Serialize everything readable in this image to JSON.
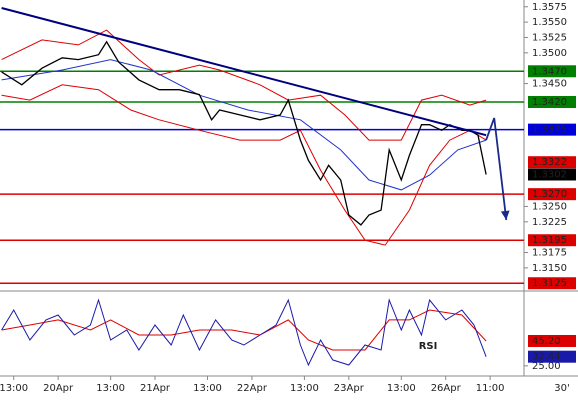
{
  "chart_data": [
    {
      "type": "line",
      "xlim": [
        -14.4,
        114.4
      ],
      "ylim": [
        1.3114,
        1.3586
      ],
      "grid": false,
      "yticks": [
        {
          "value": 1.3575,
          "label": "1.3575"
        },
        {
          "value": 1.355,
          "label": "1.3550"
        },
        {
          "value": 1.3525,
          "label": "1.3525"
        },
        {
          "value": 1.35,
          "label": "1.3500"
        },
        {
          "value": 1.345,
          "label": "1.3450"
        },
        {
          "value": 1.325,
          "label": "1.3250"
        },
        {
          "value": 1.3225,
          "label": "1.3225"
        },
        {
          "value": 1.3175,
          "label": "1.3175"
        },
        {
          "value": 1.315,
          "label": "1.3150"
        }
      ],
      "levels": [
        {
          "value": 1.347,
          "label": "1.3470",
          "color": "#008000"
        },
        {
          "value": 1.342,
          "label": "1.3420",
          "color": "#008000"
        },
        {
          "value": 1.3375,
          "label": "1.3375",
          "color": "#0000dd"
        },
        {
          "value": 1.327,
          "label": "1.3270",
          "color": "#dd0000"
        },
        {
          "value": 1.3195,
          "label": "1.3195",
          "color": "#dd0000"
        },
        {
          "value": 1.3125,
          "label": "1.3125",
          "color": "#dd0000"
        }
      ],
      "price_labels": [
        {
          "value": 1.3322,
          "label": "1.3322",
          "color": "#dd0000"
        },
        {
          "value": 1.3302,
          "label": "1.3302",
          "color": "#000000"
        }
      ],
      "series": [
        {
          "color": "#dd0000",
          "width": 1,
          "x": [
            -14,
            -4,
            5,
            12,
            20,
            25,
            35,
            40,
            50,
            57,
            65,
            71,
            77,
            85,
            90,
            95,
            102,
            106
          ],
          "values": [
            1.3489,
            1.3521,
            1.3513,
            1.3537,
            1.3489,
            1.3464,
            1.348,
            1.3472,
            1.3448,
            1.3423,
            1.3431,
            1.3399,
            1.3358,
            1.3358,
            1.3423,
            1.3431,
            1.3415,
            1.3423
          ]
        },
        {
          "color": "#dd0000",
          "width": 1,
          "x": [
            -14,
            -7,
            1,
            10,
            18,
            25,
            35,
            45,
            55,
            60,
            65,
            71,
            76,
            81,
            87,
            92,
            97,
            102,
            106
          ],
          "values": [
            1.3431,
            1.3423,
            1.3448,
            1.344,
            1.3407,
            1.3391,
            1.3374,
            1.3358,
            1.3358,
            1.3374,
            1.3309,
            1.3244,
            1.3195,
            1.3187,
            1.3244,
            1.3317,
            1.3358,
            1.3374,
            1.3358
          ]
        },
        {
          "color": "#2233cc",
          "width": 1,
          "x": [
            -14,
            1,
            13,
            23,
            35,
            47,
            60,
            70,
            77,
            85,
            92,
            99,
            106
          ],
          "values": [
            1.3456,
            1.3472,
            1.3489,
            1.3472,
            1.3431,
            1.3407,
            1.3391,
            1.3342,
            1.3293,
            1.3277,
            1.3301,
            1.3342,
            1.3358
          ]
        },
        {
          "color": "#000000",
          "width": 1.3,
          "x": [
            -14,
            -9,
            -4,
            1,
            5,
            10,
            12,
            15,
            20,
            25,
            30,
            35,
            38,
            40,
            45,
            50,
            55,
            57,
            60,
            62,
            65,
            67,
            70,
            72,
            75,
            77,
            80,
            82,
            85,
            87,
            90,
            92,
            95,
            97,
            100,
            102,
            104,
            106
          ],
          "values": [
            1.3469,
            1.3448,
            1.3475,
            1.3492,
            1.3489,
            1.3497,
            1.3518,
            1.3485,
            1.3456,
            1.344,
            1.344,
            1.3432,
            1.3391,
            1.3407,
            1.3399,
            1.3391,
            1.3399,
            1.3423,
            1.3358,
            1.3325,
            1.3293,
            1.3317,
            1.3293,
            1.3236,
            1.322,
            1.3236,
            1.3244,
            1.3342,
            1.3293,
            1.3333,
            1.3383,
            1.3383,
            1.3374,
            1.3383,
            1.3374,
            1.3374,
            1.3366,
            1.3302
          ]
        },
        {
          "color": "#000080",
          "width": 2,
          "x": [
            -14,
            106
          ],
          "values": [
            1.3573,
            1.3366
          ]
        },
        {
          "color": "#1a2a8a",
          "width": 1.8,
          "arrow": true,
          "x": [
            106,
            108,
            111
          ],
          "values": [
            1.3358,
            1.3394,
            1.3228
          ]
        }
      ]
    },
    {
      "type": "line",
      "title": "RSI",
      "timeframe": "30'",
      "xlim": [
        -14.4,
        114.4
      ],
      "ylim": [
        20,
        85
      ],
      "xticks": [
        {
          "value": -11,
          "label": "13:00"
        },
        {
          "value": 0,
          "label": "20Apr"
        },
        {
          "value": 13,
          "label": "13:00"
        },
        {
          "value": 24,
          "label": "21Apr"
        },
        {
          "value": 37,
          "label": "13:00"
        },
        {
          "value": 48,
          "label": "22Apr"
        },
        {
          "value": 61,
          "label": "13:00"
        },
        {
          "value": 72,
          "label": "23Apr"
        },
        {
          "value": 85,
          "label": "13:00"
        },
        {
          "value": 96,
          "label": "26Apr"
        },
        {
          "value": 107,
          "label": "11:00"
        }
      ],
      "yticks": [
        {
          "value": 25,
          "label": "25.00"
        }
      ],
      "series": [
        {
          "color": "#dd0000",
          "width": 1,
          "x": [
            -14,
            -7,
            0,
            8,
            13,
            20,
            28,
            35,
            43,
            50,
            57,
            62,
            68,
            76,
            82,
            87,
            92,
            100,
            106
          ],
          "values": [
            54.1,
            58.2,
            62.3,
            54.1,
            62.3,
            50.1,
            50.1,
            54.1,
            54.1,
            50.1,
            62.3,
            46,
            37.9,
            37.9,
            62.3,
            62.3,
            70.4,
            66.3,
            45.2
          ],
          "marker": {
            "value": 45.2,
            "label": "45.20"
          }
        },
        {
          "color": "#1a1aaa",
          "width": 1,
          "x": [
            -14,
            -11,
            -7,
            -3,
            0,
            4,
            8,
            10,
            13,
            17,
            20,
            24,
            28,
            31,
            35,
            39,
            43,
            46,
            50,
            54,
            57,
            60,
            62,
            65,
            68,
            72,
            76,
            80,
            82,
            85,
            87,
            90,
            92,
            96,
            100,
            103,
            106
          ],
          "values": [
            54.1,
            70.4,
            46,
            62.3,
            66.3,
            50.1,
            58.2,
            78.5,
            46,
            54.1,
            37.9,
            58.2,
            41.9,
            66.3,
            37.9,
            62.3,
            46,
            41.9,
            50.1,
            58.2,
            78.5,
            41.9,
            25.7,
            46,
            29.8,
            25.7,
            41.9,
            37.9,
            78.5,
            54.1,
            70.4,
            50.1,
            78.5,
            62.3,
            70.4,
            58.2,
            32.44
          ],
          "marker": {
            "value": 32.44,
            "label": "32.44"
          }
        }
      ]
    }
  ]
}
